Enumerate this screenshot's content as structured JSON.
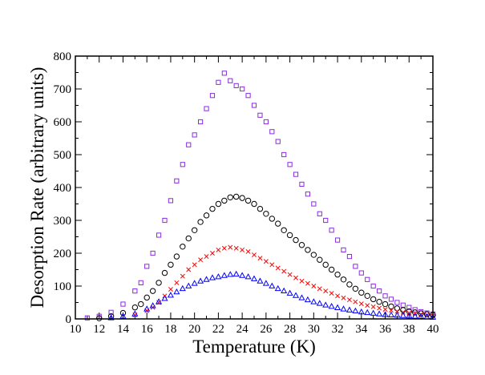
{
  "chart_data": {
    "type": "scatter",
    "title": "",
    "xlabel": "Temperature (K)",
    "ylabel": "Desorption Rate (arbitrary units)",
    "xlim": [
      10,
      40
    ],
    "ylim": [
      0,
      800
    ],
    "xticks": [
      10,
      12,
      14,
      16,
      18,
      20,
      22,
      24,
      26,
      28,
      30,
      32,
      34,
      36,
      38,
      40
    ],
    "yticks": [
      0,
      100,
      200,
      300,
      400,
      500,
      600,
      700,
      800
    ],
    "grid": false,
    "legend": "none",
    "series": [
      {
        "name": "purple squares",
        "marker": "square",
        "color": "#8a2be2",
        "x": [
          11.0,
          12.0,
          13.0,
          14.0,
          15.0,
          15.5,
          16.0,
          16.5,
          17.0,
          17.5,
          18.0,
          18.5,
          19.0,
          19.5,
          20.0,
          20.5,
          21.0,
          21.5,
          22.0,
          22.5,
          23.0,
          23.5,
          24.0,
          24.5,
          25.0,
          25.5,
          26.0,
          26.5,
          27.0,
          27.5,
          28.0,
          28.5,
          29.0,
          29.5,
          30.0,
          30.5,
          31.0,
          31.5,
          32.0,
          32.5,
          33.0,
          33.5,
          34.0,
          34.5,
          35.0,
          35.5,
          36.0,
          36.5,
          37.0,
          37.5,
          38.0,
          38.5,
          39.0,
          39.5,
          40.0
        ],
        "y": [
          3,
          8,
          20,
          45,
          85,
          110,
          160,
          200,
          255,
          300,
          360,
          420,
          470,
          530,
          560,
          600,
          640,
          680,
          720,
          748,
          725,
          710,
          700,
          680,
          650,
          620,
          600,
          570,
          540,
          500,
          470,
          440,
          410,
          380,
          350,
          320,
          300,
          270,
          240,
          210,
          190,
          160,
          140,
          120,
          100,
          85,
          70,
          60,
          50,
          42,
          35,
          28,
          22,
          18,
          15
        ]
      },
      {
        "name": "black circles",
        "marker": "circle",
        "color": "#000000",
        "x": [
          12.0,
          13.0,
          14.0,
          15.0,
          15.5,
          16.0,
          16.5,
          17.0,
          17.5,
          18.0,
          18.5,
          19.0,
          19.5,
          20.0,
          20.5,
          21.0,
          21.5,
          22.0,
          22.5,
          23.0,
          23.5,
          24.0,
          24.5,
          25.0,
          25.5,
          26.0,
          26.5,
          27.0,
          27.5,
          28.0,
          28.5,
          29.0,
          29.5,
          30.0,
          30.5,
          31.0,
          31.5,
          32.0,
          32.5,
          33.0,
          33.5,
          34.0,
          34.5,
          35.0,
          35.5,
          36.0,
          36.5,
          37.0,
          37.5,
          38.0,
          38.5,
          39.0,
          39.5,
          40.0
        ],
        "y": [
          2,
          8,
          18,
          35,
          45,
          65,
          85,
          110,
          140,
          165,
          190,
          220,
          245,
          270,
          295,
          315,
          335,
          350,
          360,
          370,
          372,
          368,
          360,
          350,
          335,
          320,
          305,
          290,
          270,
          255,
          240,
          225,
          210,
          195,
          180,
          165,
          150,
          135,
          120,
          105,
          92,
          80,
          70,
          60,
          52,
          45,
          38,
          32,
          27,
          23,
          20,
          17,
          14,
          12
        ]
      },
      {
        "name": "red crosses",
        "marker": "cross",
        "color": "#ff0000",
        "x": [
          15.0,
          16.0,
          16.5,
          17.0,
          17.5,
          18.0,
          18.5,
          19.0,
          19.5,
          20.0,
          20.5,
          21.0,
          21.5,
          22.0,
          22.5,
          23.0,
          23.5,
          24.0,
          24.5,
          25.0,
          25.5,
          26.0,
          26.5,
          27.0,
          27.5,
          28.0,
          28.5,
          29.0,
          29.5,
          30.0,
          30.5,
          31.0,
          31.5,
          32.0,
          32.5,
          33.0,
          33.5,
          34.0,
          34.5,
          35.0,
          35.5,
          36.0,
          36.5,
          37.0,
          37.5,
          38.0,
          38.5,
          39.0,
          39.5,
          40.0
        ],
        "y": [
          12,
          25,
          35,
          50,
          70,
          90,
          110,
          130,
          150,
          165,
          180,
          190,
          200,
          210,
          215,
          218,
          215,
          210,
          205,
          195,
          185,
          175,
          165,
          155,
          145,
          135,
          125,
          115,
          108,
          100,
          92,
          85,
          78,
          70,
          64,
          58,
          52,
          46,
          41,
          37,
          33,
          29,
          26,
          23,
          20,
          18,
          16,
          14,
          12,
          10
        ]
      },
      {
        "name": "blue triangles",
        "marker": "triangle",
        "color": "#0000ff",
        "x": [
          13.0,
          14.0,
          15.0,
          16.0,
          16.5,
          17.0,
          17.5,
          18.0,
          18.5,
          19.0,
          19.5,
          20.0,
          20.5,
          21.0,
          21.5,
          22.0,
          22.5,
          23.0,
          23.5,
          24.0,
          24.5,
          25.0,
          25.5,
          26.0,
          26.5,
          27.0,
          27.5,
          28.0,
          28.5,
          29.0,
          29.5,
          30.0,
          30.5,
          31.0,
          31.5,
          32.0,
          32.5,
          33.0,
          33.5,
          34.0,
          34.5,
          35.0,
          35.5,
          36.0,
          36.5,
          37.0,
          37.5,
          38.0,
          38.5,
          39.0,
          39.5,
          40.0
        ],
        "y": [
          3,
          8,
          15,
          30,
          40,
          52,
          62,
          72,
          82,
          92,
          100,
          108,
          115,
          120,
          125,
          128,
          132,
          135,
          136,
          132,
          128,
          122,
          115,
          108,
          100,
          92,
          85,
          78,
          71,
          64,
          58,
          52,
          47,
          42,
          38,
          34,
          30,
          27,
          24,
          21,
          19,
          17,
          15,
          13,
          12,
          11,
          10,
          9,
          8,
          7,
          6,
          5
        ]
      }
    ]
  }
}
